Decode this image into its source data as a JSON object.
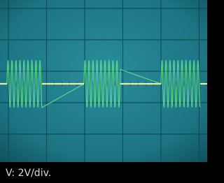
{
  "caption": "V: 2V/div."
}
